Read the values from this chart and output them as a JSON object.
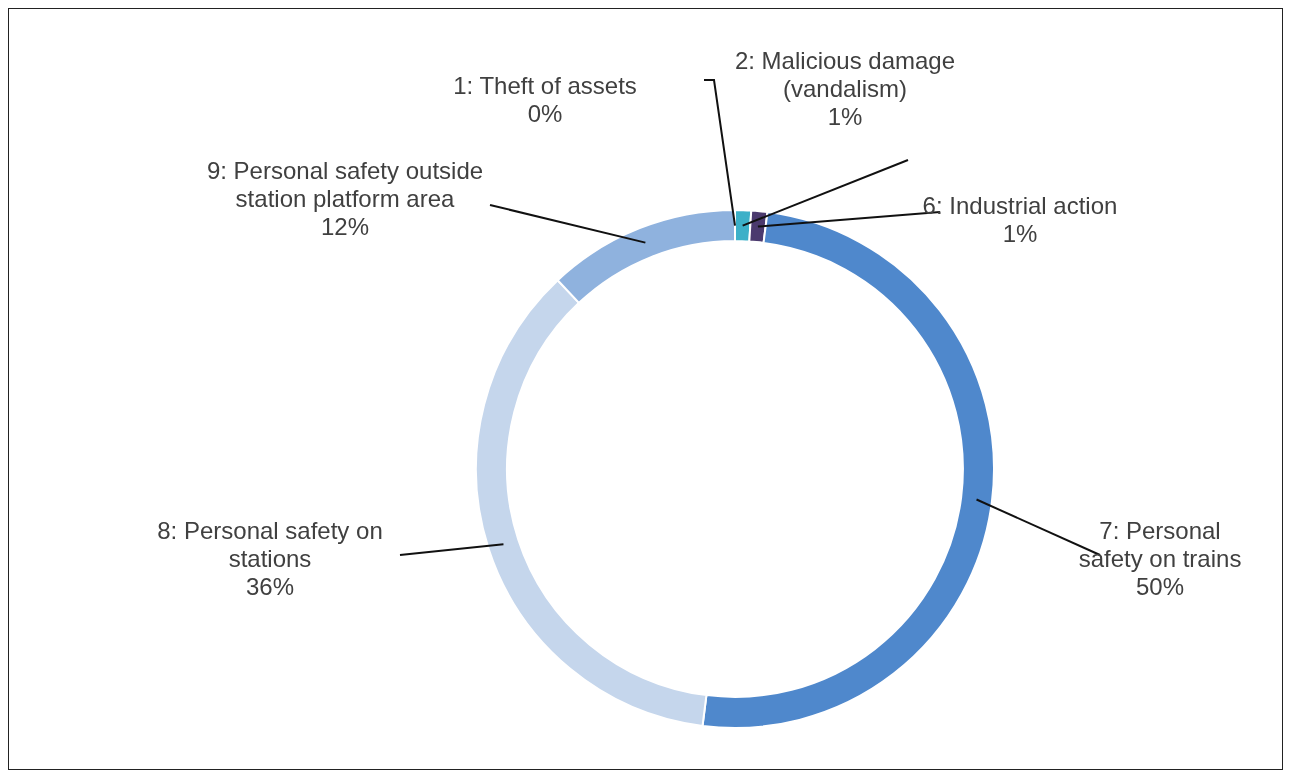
{
  "chart_data": {
    "type": "donut",
    "categories": [
      "1: Theft of assets",
      "2: Malicious damage (vandalism)",
      "6: Industrial action",
      "7: Personal safety on trains",
      "8: Personal safety on stations",
      "9: Personal safety outside station platform area"
    ],
    "values": [
      0,
      1,
      1,
      50,
      36,
      12
    ],
    "colors": [
      "#2e6fb5",
      "#3cb0c8",
      "#4b3a6e",
      "#4f88cc",
      "#c5d6ec",
      "#8fb2de"
    ],
    "value_labels": [
      "0%",
      "1%",
      "1%",
      "50%",
      "36%",
      "12%"
    ],
    "legend": false
  }
}
